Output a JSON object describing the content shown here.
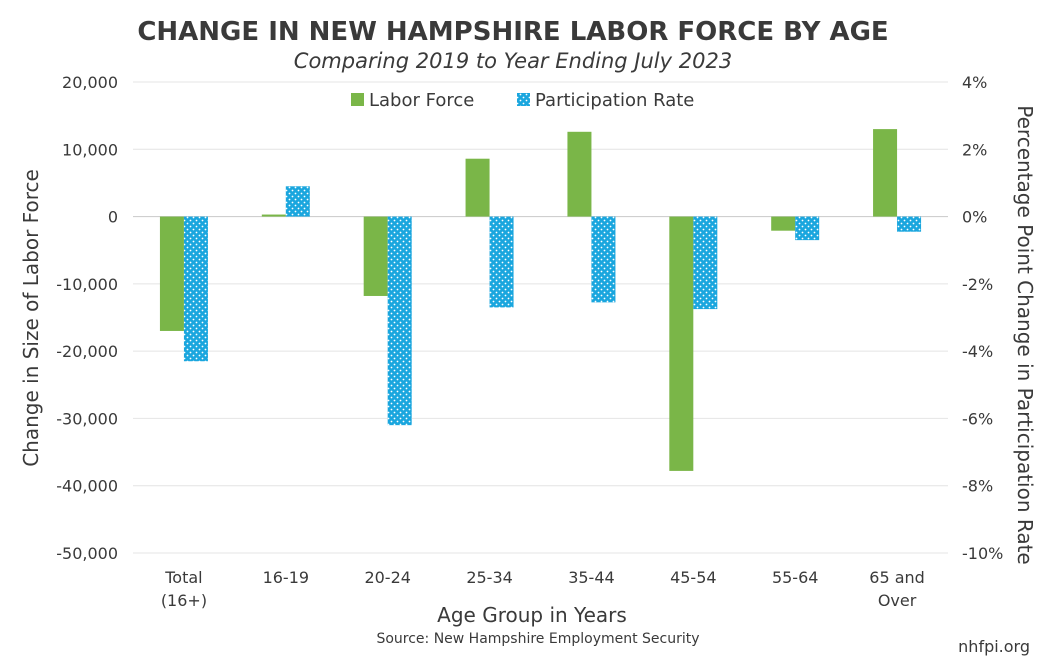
{
  "chart_data": {
    "type": "bar",
    "title": "CHANGE IN NEW HAMPSHIRE LABOR FORCE BY AGE",
    "subtitle": "Comparing 2019 to Year Ending July 2023",
    "categories": [
      "Total\n(16+)",
      "16-19",
      "20-24",
      "25-34",
      "35-44",
      "45-54",
      "55-64",
      "65 and\nOver"
    ],
    "series": [
      {
        "name": "Labor Force",
        "axis": "left",
        "color": "#7ab648",
        "values": [
          -17000,
          300,
          -11800,
          8600,
          12600,
          -37800,
          -2100,
          13000
        ]
      },
      {
        "name": "Participation Rate",
        "axis": "right",
        "color": "#1aa6de",
        "pattern": "dotted",
        "values": [
          -4.3,
          0.9,
          -6.2,
          -2.7,
          -2.55,
          -2.75,
          -0.7,
          -0.45
        ]
      }
    ],
    "xlabel": "Age Group in Years",
    "ylabel": "Change in Size of Labor Force",
    "y2label": "Percentage Point Change in Participation Rate",
    "ylim": [
      -50000,
      20000
    ],
    "y2lim": [
      -10,
      4
    ],
    "yticks": [
      20000,
      10000,
      0,
      -10000,
      -20000,
      -30000,
      -40000,
      -50000
    ],
    "yticklabels": [
      "20,000",
      "10,000",
      "0",
      "-10,000",
      "-20,000",
      "-30,000",
      "-40,000",
      "-50,000"
    ],
    "y2ticks": [
      4,
      2,
      0,
      -2,
      -4,
      -6,
      -8,
      -10
    ],
    "y2ticklabels": [
      "4%",
      "2%",
      "0%",
      "-2%",
      "-4%",
      "-6%",
      "-8%",
      "-10%"
    ],
    "grid": true,
    "legend_position": "top-center",
    "source": "Source: New Hampshire Employment Security",
    "credit": "nhfpi.org"
  }
}
